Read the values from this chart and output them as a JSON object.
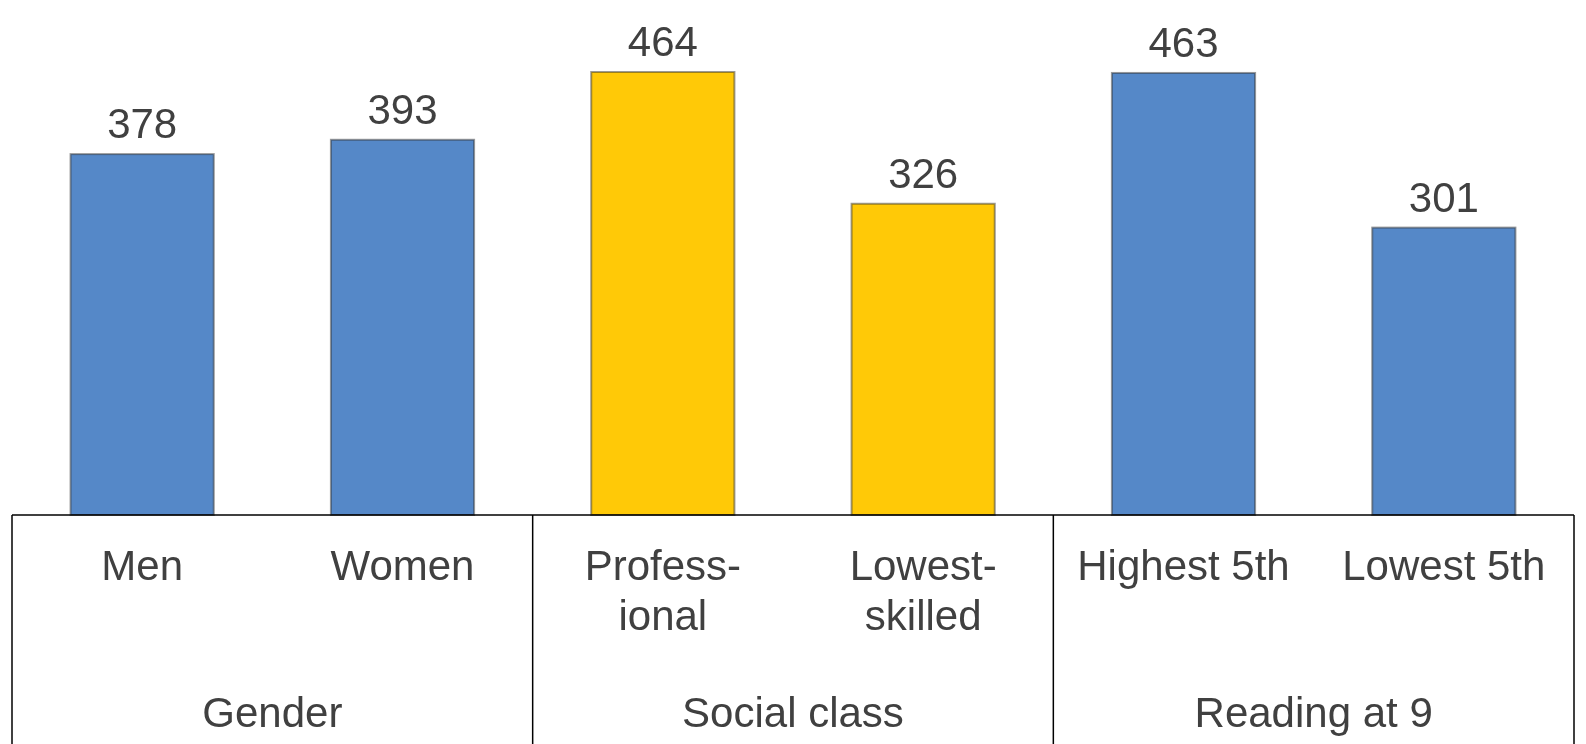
{
  "chart_data": {
    "type": "bar",
    "categories": [
      "Men",
      "Women",
      "Profess-\nional",
      "Lowest-\nskilled",
      "Highest 5th",
      "Lowest 5th"
    ],
    "values": [
      378,
      393,
      464,
      326,
      463,
      301
    ],
    "colors": [
      "#5588c8",
      "#5588c8",
      "#ffc907",
      "#ffc907",
      "#5588c8",
      "#5588c8"
    ],
    "data_labels": true,
    "annotations": [
      "Gender",
      "Social class",
      "Reading at 9"
    ]
  }
}
